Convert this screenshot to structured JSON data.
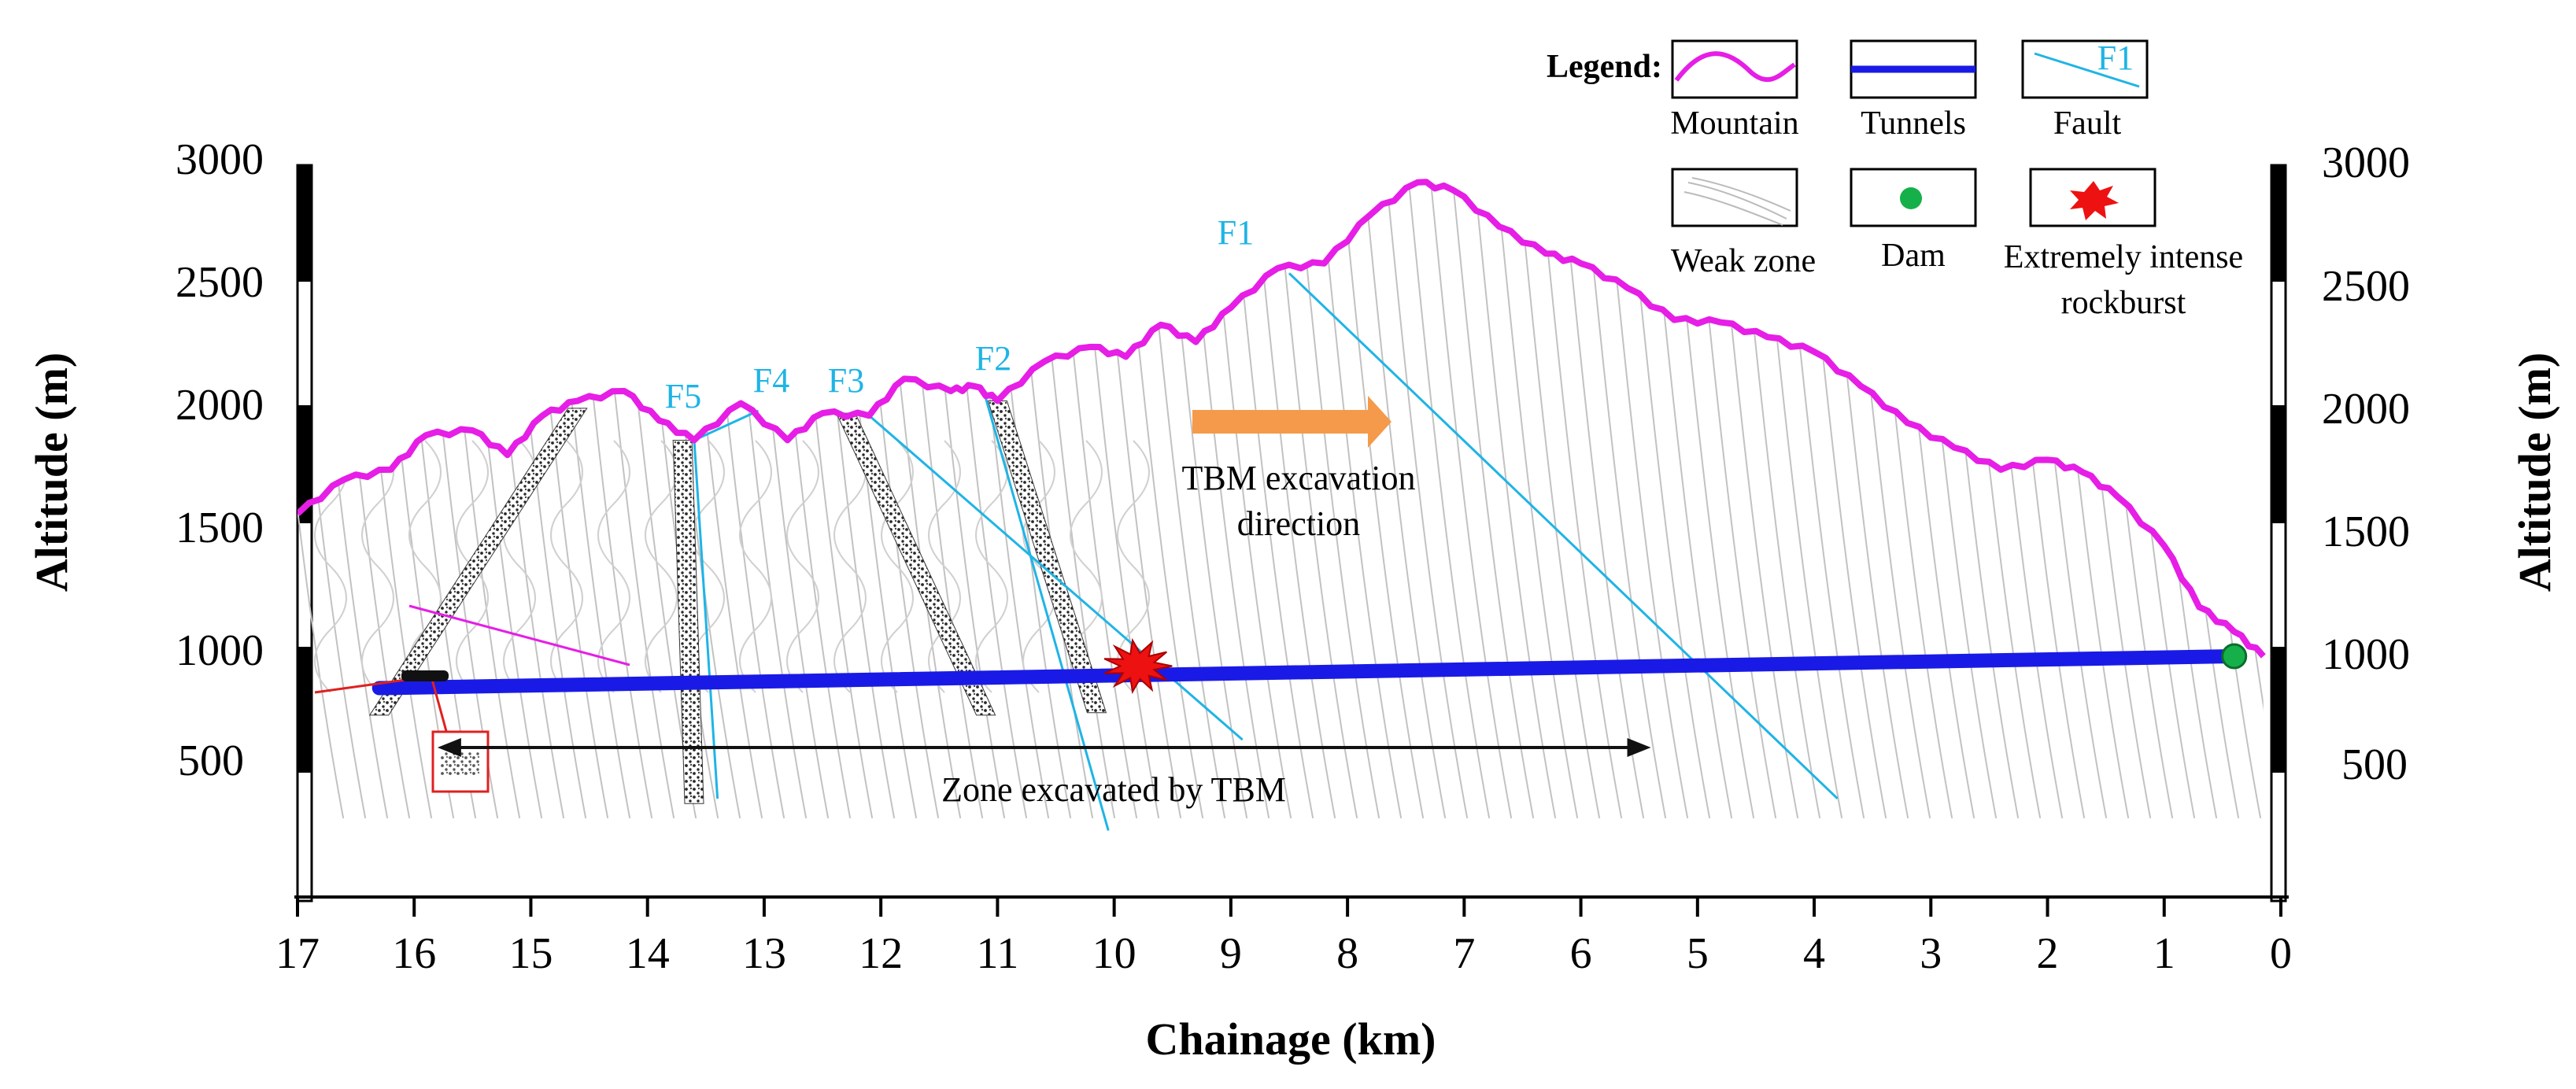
{
  "chart_data": {
    "type": "diagram",
    "title": "",
    "xlabel": "Chainage (km)",
    "ylabel": "Altitude (m)",
    "ylabel_right": "Altitude (m)",
    "xlim": [
      17,
      0
    ],
    "ylim": [
      0,
      3000
    ],
    "x_ticks": [
      "17",
      "16",
      "15",
      "14",
      "13",
      "12",
      "11",
      "10",
      "9",
      "8",
      "7",
      "6",
      "5",
      "4",
      "3",
      "2",
      "1",
      "0"
    ],
    "y_ticks": [
      "3000",
      "2500",
      "2000",
      "1500",
      "1000",
      "500"
    ],
    "mountain_profile": {
      "x": [
        17,
        16.6,
        16.2,
        15.9,
        15.5,
        15.2,
        14.9,
        14.6,
        14.2,
        13.9,
        13.6,
        13.2,
        12.8,
        12.5,
        12.1,
        11.8,
        11.4,
        11.2,
        11.0,
        10.6,
        10.2,
        9.9,
        9.6,
        9.3,
        9.0,
        8.6,
        8.2,
        7.8,
        7.4,
        7.1,
        6.7,
        6.3,
        6.0,
        5.6,
        5.2,
        4.8,
        4.4,
        4.0,
        3.6,
        3.2,
        2.8,
        2.4,
        2.0,
        1.7,
        1.4,
        1.0,
        0.7,
        0.4,
        0.15
      ],
      "y": [
        1580,
        1720,
        1760,
        1900,
        1920,
        1820,
        1980,
        2040,
        2080,
        1960,
        1880,
        2030,
        1880,
        1990,
        1980,
        2130,
        2080,
        2100,
        2040,
        2200,
        2260,
        2220,
        2350,
        2280,
        2420,
        2580,
        2600,
        2800,
        2930,
        2900,
        2750,
        2640,
        2600,
        2500,
        2370,
        2360,
        2300,
        2240,
        2100,
        1950,
        1850,
        1760,
        1800,
        1750,
        1650,
        1450,
        1200,
        1100,
        1000
      ]
    },
    "tunnel": {
      "x": [
        16.3,
        0.4
      ],
      "y": [
        870,
        1000
      ]
    },
    "faults": [
      {
        "name": "F1",
        "x": [
          8.5,
          3.8
        ],
        "y": [
          2560,
          420
        ]
      },
      {
        "name": "F2",
        "x": [
          11.1,
          10.05
        ],
        "y": [
          2050,
          290
        ]
      },
      {
        "name": "F3",
        "x": [
          12.1,
          8.9
        ],
        "y": [
          1980,
          660
        ]
      },
      {
        "name": "F4",
        "x": [
          13.05,
          13.6
        ],
        "y": [
          2000,
          1880
        ]
      },
      {
        "name": "F5",
        "x": [
          13.6,
          13.4
        ],
        "y": [
          1880,
          420
        ]
      }
    ],
    "weak_zones": [
      {
        "x": [
          14.6,
          16.3
        ],
        "y": [
          2010,
          760
        ]
      },
      {
        "x": [
          13.7,
          13.6
        ],
        "y": [
          1880,
          400
        ]
      },
      {
        "x": [
          12.3,
          11.1
        ],
        "y": [
          1990,
          760
        ]
      },
      {
        "x": [
          11.0,
          10.15
        ],
        "y": [
          2040,
          770
        ]
      }
    ],
    "dam": {
      "x": 0.4,
      "y": 1000
    },
    "rockburst": {
      "x": 9.8,
      "y": 960
    },
    "excavation_zone_km": [
      15.8,
      5.4
    ],
    "labels": {
      "direction": [
        "TBM excavation",
        "direction"
      ],
      "zone": "Zone excavated by TBM",
      "fault_names": [
        "F1",
        "F2",
        "F3",
        "F4",
        "F5"
      ]
    },
    "legend": {
      "title": "Legend:",
      "items": [
        {
          "label": "Mountain",
          "color": "#e61ee6"
        },
        {
          "label": "Tunnels",
          "color": "#1a1ae6"
        },
        {
          "label": "Fault",
          "color": "#1fb4e6",
          "sample_text": "F1"
        },
        {
          "label": "Weak zone",
          "color": "#999999"
        },
        {
          "label": "Dam",
          "color": "#16b04a"
        },
        {
          "label": [
            "Extremely intense",
            "rockburst"
          ],
          "color": "#ee1111"
        }
      ]
    }
  }
}
